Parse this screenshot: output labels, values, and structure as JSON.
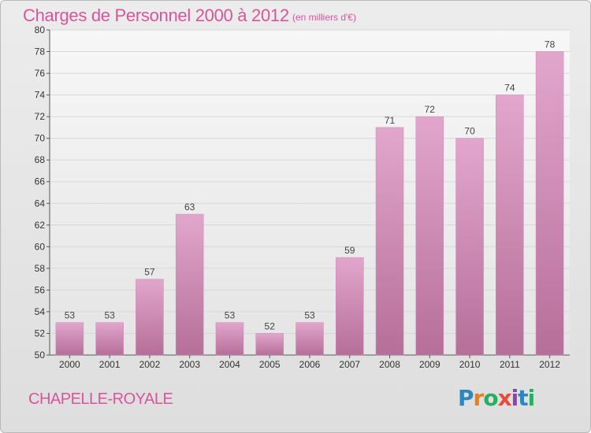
{
  "header": {
    "title": "Charges de Personnel 2000 à 2012",
    "unit": "(en milliers d'€)"
  },
  "footer": {
    "location": "CHAPELLE-ROYALE",
    "logo_letters": [
      {
        "char": "P",
        "color": "#2e86c1"
      },
      {
        "char": "r",
        "color": "#e67e22"
      },
      {
        "char": "o",
        "color": "#27ae60"
      },
      {
        "char": "x",
        "color": "#e74c3c"
      },
      {
        "char": "i",
        "color": "#8e44ad"
      },
      {
        "char": "t",
        "color": "#2e86c1"
      },
      {
        "char": "i",
        "color": "#27ae60"
      }
    ]
  },
  "colors": {
    "accent": "#d9559b",
    "bar_top": "#e2a6cc",
    "bar_bottom": "#b56f98",
    "grid": "#d8d8d8"
  },
  "chart_data": {
    "type": "bar",
    "categories": [
      "2000",
      "2001",
      "2002",
      "2003",
      "2004",
      "2005",
      "2006",
      "2007",
      "2008",
      "2009",
      "2010",
      "2011",
      "2012"
    ],
    "values": [
      53,
      53,
      57,
      63,
      53,
      52,
      53,
      59,
      71,
      72,
      70,
      74,
      78
    ],
    "ylim": [
      50,
      80
    ],
    "yticks": [
      50,
      52,
      54,
      56,
      58,
      60,
      62,
      64,
      66,
      68,
      70,
      72,
      74,
      76,
      78,
      80
    ],
    "grid": true
  }
}
